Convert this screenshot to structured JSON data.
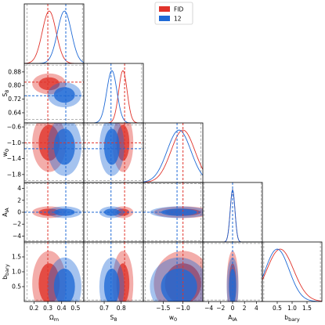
{
  "chart_data": {
    "type": "corner",
    "legend": "upper center",
    "params": [
      {
        "symbol": "Ω",
        "sub": "m",
        "lim": [
          0.13,
          0.56
        ],
        "prior": [
          0.15,
          0.55
        ],
        "xticks": [
          0.2,
          0.3,
          0.4,
          0.5
        ],
        "yticks": []
      },
      {
        "symbol": "S",
        "sub": "8",
        "lim": [
          0.58,
          0.93
        ],
        "prior": [
          0.6,
          0.92
        ],
        "xticks": [
          0.7,
          0.8
        ],
        "yticks": [
          0.64,
          0.72,
          {
            "value": 0.8,
            "label": "0.80"
          },
          0.88
        ]
      },
      {
        "symbol": "w",
        "sub": "0",
        "lim": [
          -2.0,
          -0.5
        ],
        "prior": [
          -1.95,
          -0.55
        ],
        "xticks": [
          {
            "value": -1.5,
            "label": "−1.5"
          },
          {
            "value": -1.0,
            "label": "−1.0"
          }
        ],
        "yticks": [
          {
            "value": -0.6,
            "label": "−0.6"
          },
          {
            "value": -1.0,
            "label": "−1.0"
          },
          {
            "value": -1.4,
            "label": "−1.4"
          },
          {
            "value": -1.8,
            "label": "−1.8"
          }
        ]
      },
      {
        "symbol": "A",
        "sub": "IA",
        "lim": [
          -5,
          5
        ],
        "prior": [
          -4.8,
          4.8
        ],
        "xticks": [
          {
            "value": -4,
            "label": "−4"
          },
          {
            "value": -2,
            "label": "−2"
          },
          0,
          2,
          4
        ],
        "yticks": [
          {
            "value": -4,
            "label": "−4"
          },
          {
            "value": -2,
            "label": "−2"
          },
          0,
          2,
          4
        ]
      },
      {
        "symbol": "b",
        "sub": "bary",
        "lim": [
          0,
          2
        ],
        "prior": [
          0.05,
          1.95
        ],
        "xticks": [
          0.5,
          {
            "value": 1.0,
            "label": "1.0"
          },
          1.5
        ],
        "yticks": [
          0.5,
          {
            "value": 1.0,
            "label": "1.0"
          },
          1.5
        ]
      }
    ],
    "series": [
      {
        "name": "FID",
        "color": "#e0332b",
        "marker": [
          0.3,
          0.82,
          -1.0,
          0,
          null
        ],
        "mean": [
          0.31,
          0.81,
          -1.0,
          0,
          0.6
        ],
        "sigma": [
          0.05,
          0.025,
          0.3,
          0.4,
          0.45
        ]
      },
      {
        "name": "12",
        "color": "#1f6ad6",
        "marker": [
          0.43,
          0.74,
          -1.15,
          0,
          null
        ],
        "mean": [
          0.42,
          0.745,
          -1.1,
          0,
          0.5
        ],
        "sigma": [
          0.05,
          0.03,
          0.3,
          0.4,
          0.4
        ]
      }
    ]
  }
}
